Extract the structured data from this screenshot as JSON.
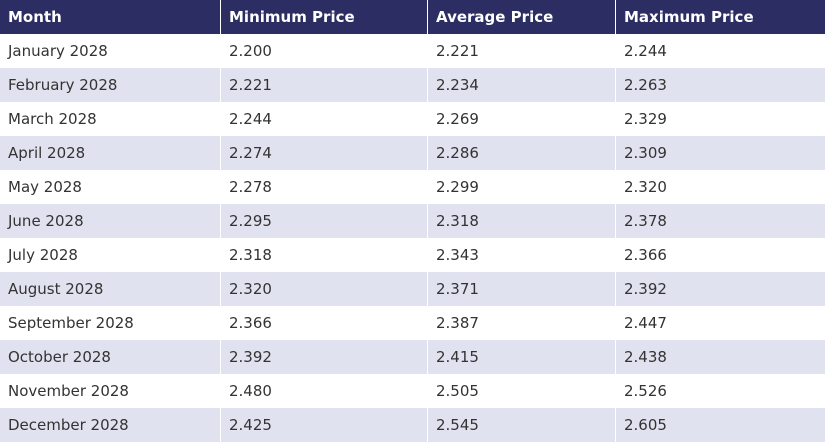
{
  "colors": {
    "header_bg": "#2b2d63",
    "header_text": "#ffffff",
    "row_alt_bg": "#e1e2ef",
    "row_bg": "#ffffff",
    "cell_text": "#333333"
  },
  "table": {
    "headers": [
      "Month",
      "Minimum Price",
      "Average Price",
      "Maximum Price"
    ],
    "rows": [
      [
        "January 2028",
        "2.200",
        "2.221",
        "2.244"
      ],
      [
        "February 2028",
        "2.221",
        "2.234",
        "2.263"
      ],
      [
        "March 2028",
        "2.244",
        "2.269",
        "2.329"
      ],
      [
        "April 2028",
        "2.274",
        "2.286",
        "2.309"
      ],
      [
        "May 2028",
        "2.278",
        "2.299",
        "2.320"
      ],
      [
        "June 2028",
        "2.295",
        "2.318",
        "2.378"
      ],
      [
        "July 2028",
        "2.318",
        "2.343",
        "2.366"
      ],
      [
        "August 2028",
        "2.320",
        "2.371",
        "2.392"
      ],
      [
        "September 2028",
        "2.366",
        "2.387",
        "2.447"
      ],
      [
        "October 2028",
        "2.392",
        "2.415",
        "2.438"
      ],
      [
        "November 2028",
        "2.480",
        "2.505",
        "2.526"
      ],
      [
        "December 2028",
        "2.425",
        "2.545",
        "2.605"
      ]
    ]
  }
}
